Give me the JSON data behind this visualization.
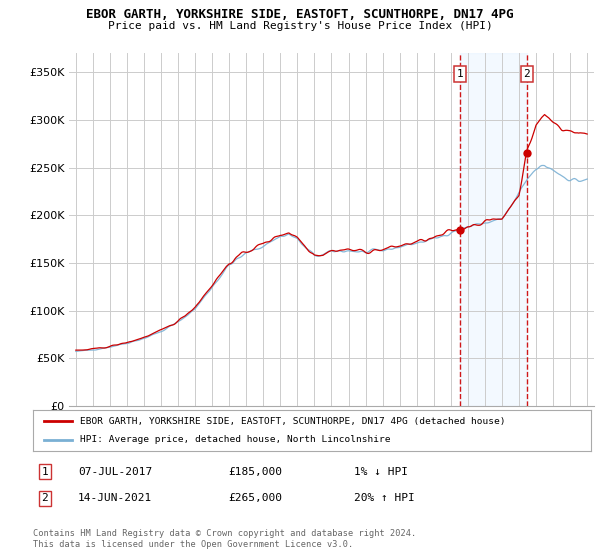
{
  "title": "EBOR GARTH, YORKSHIRE SIDE, EASTOFT, SCUNTHORPE, DN17 4PG",
  "subtitle": "Price paid vs. HM Land Registry's House Price Index (HPI)",
  "legend_line1": "EBOR GARTH, YORKSHIRE SIDE, EASTOFT, SCUNTHORPE, DN17 4PG (detached house)",
  "legend_line2": "HPI: Average price, detached house, North Lincolnshire",
  "annotation1_label": "1",
  "annotation1_date": "07-JUL-2017",
  "annotation1_price": "£185,000",
  "annotation1_hpi": "1% ↓ HPI",
  "annotation2_label": "2",
  "annotation2_date": "14-JUN-2021",
  "annotation2_price": "£265,000",
  "annotation2_hpi": "20% ↑ HPI",
  "footnote": "Contains HM Land Registry data © Crown copyright and database right 2024.\nThis data is licensed under the Open Government Licence v3.0.",
  "ylim": [
    0,
    370000
  ],
  "yticks": [
    0,
    50000,
    100000,
    150000,
    200000,
    250000,
    300000,
    350000
  ],
  "background_color": "#ffffff",
  "plot_bg_color": "#ffffff",
  "grid_color": "#cccccc",
  "red_color": "#cc0000",
  "blue_color": "#7ab0d4",
  "span_color": "#ddeeff",
  "vline_color": "#cc0000",
  "marker1_x": 2017.54,
  "marker1_y": 185000,
  "marker2_x": 2021.45,
  "marker2_y": 265000,
  "xmin": 1994.6,
  "xmax": 2025.4
}
